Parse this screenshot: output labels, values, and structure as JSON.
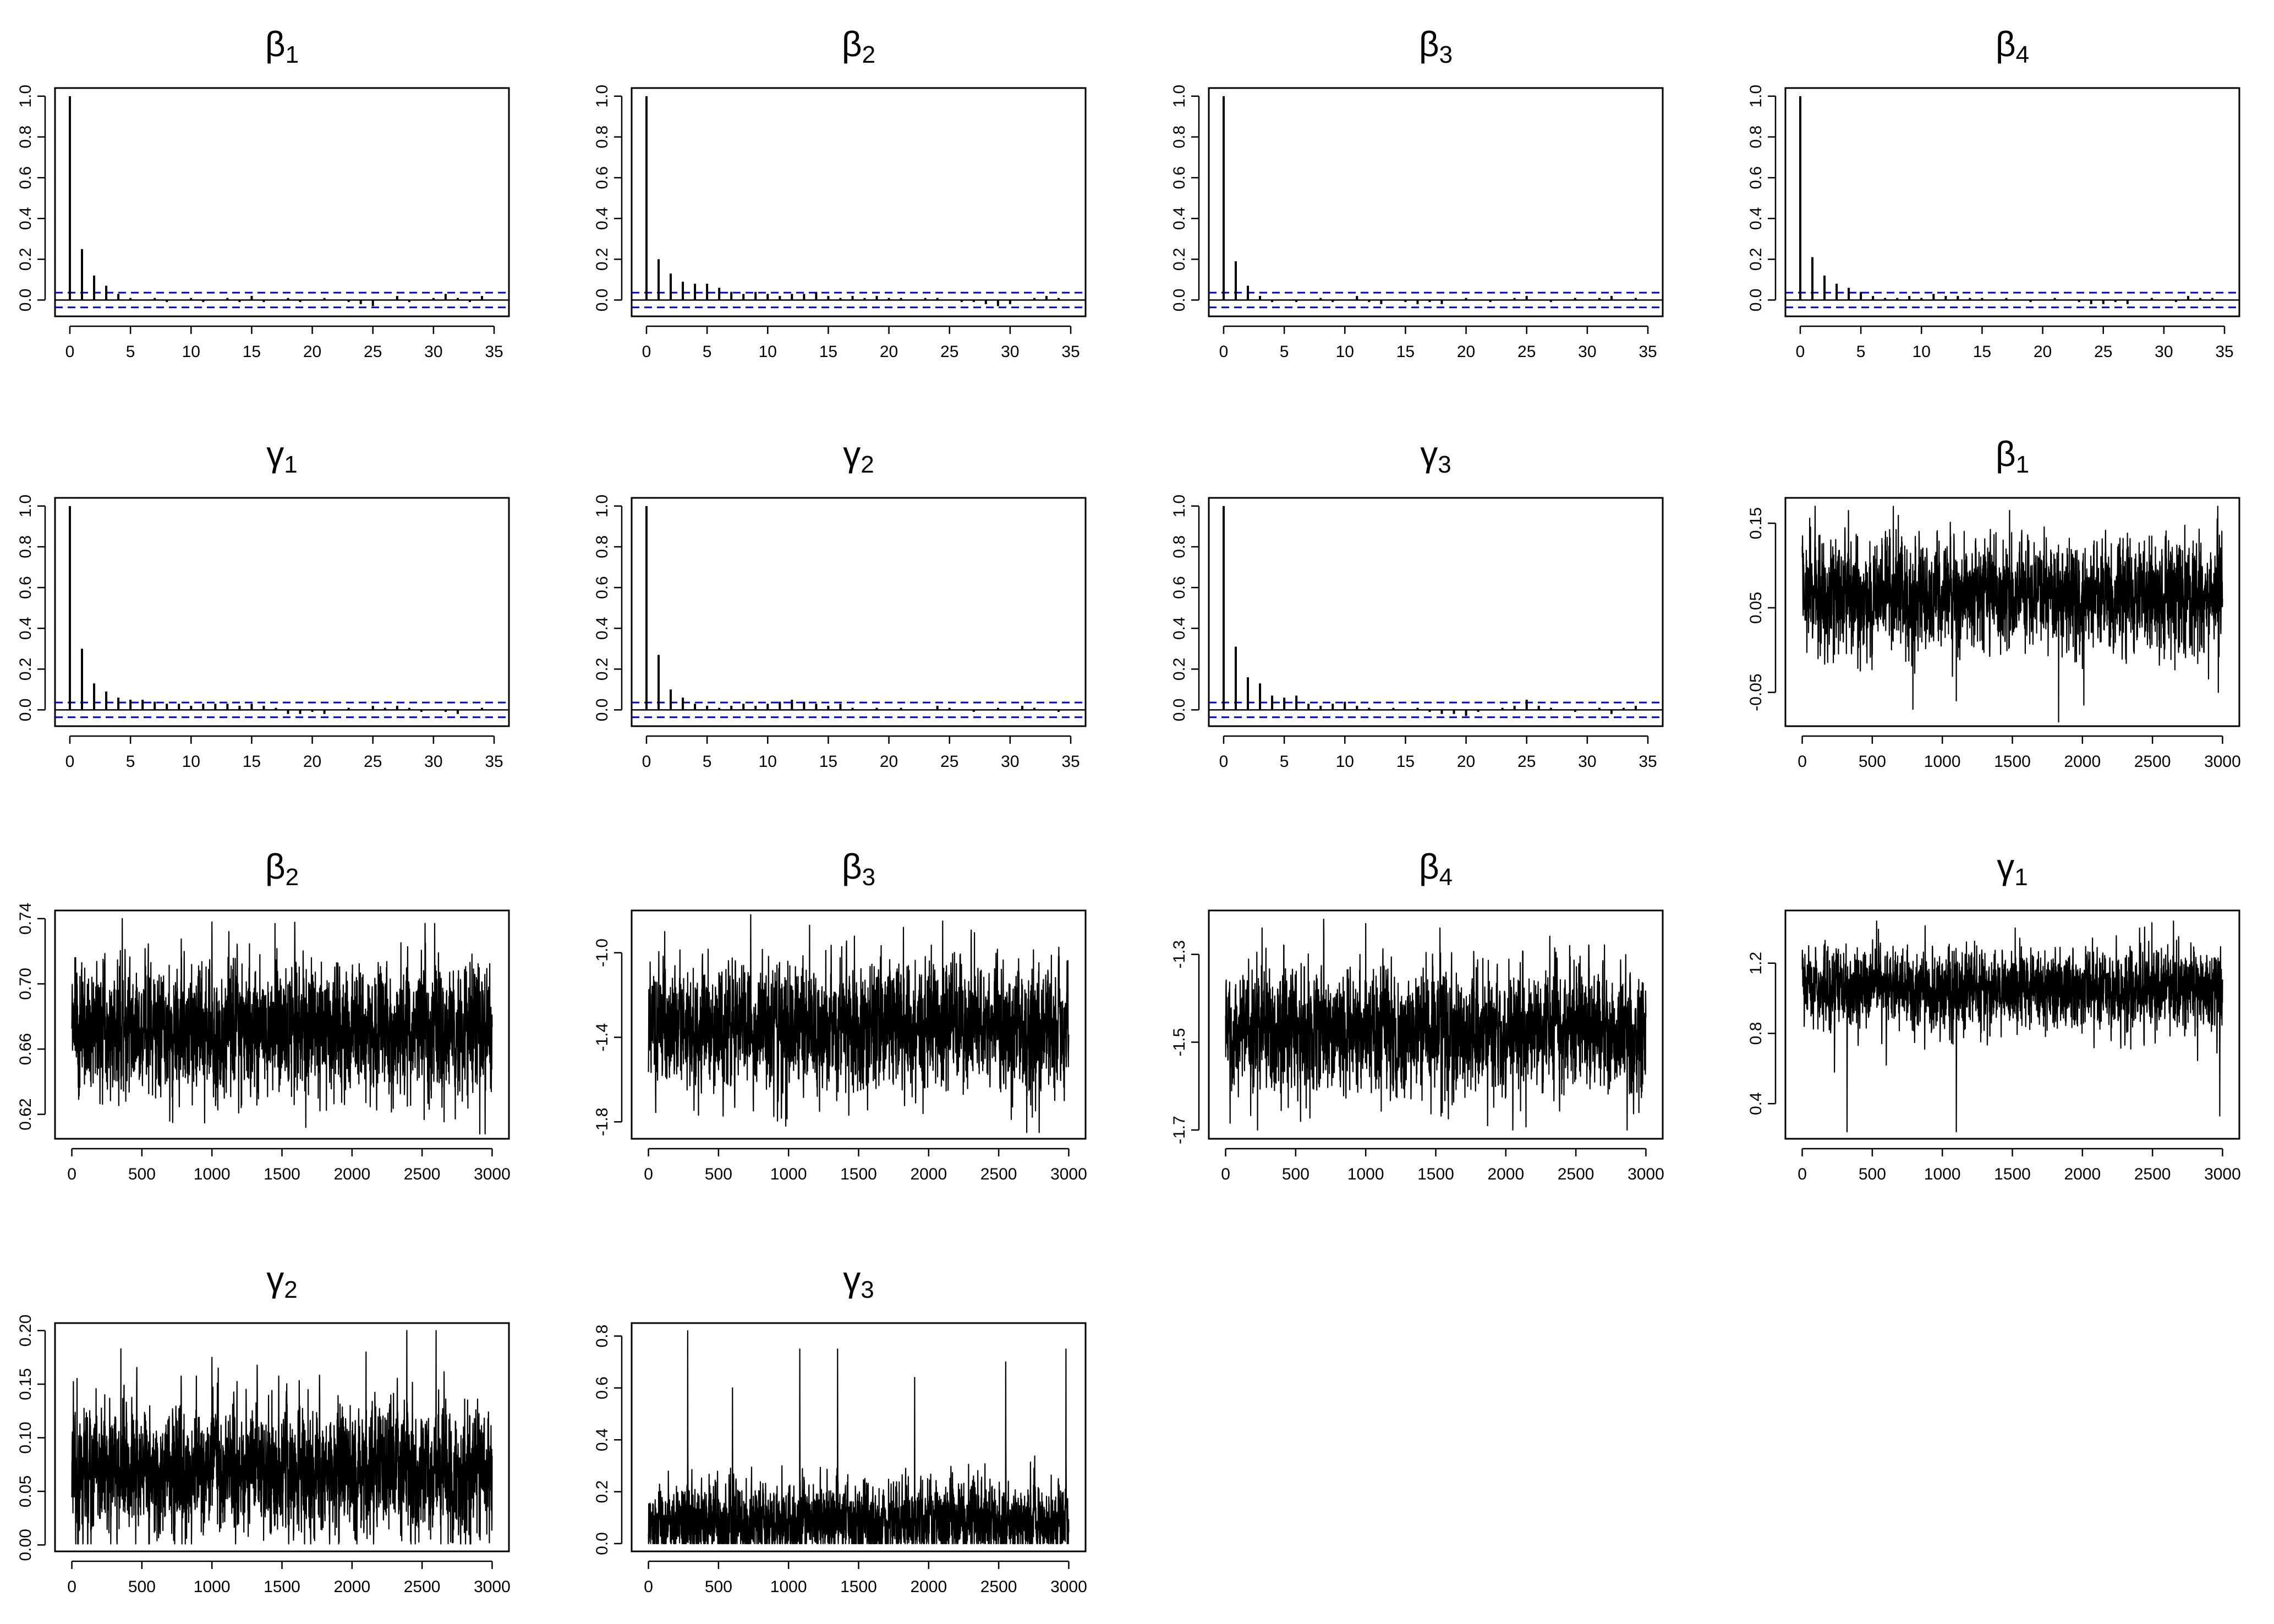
{
  "figure": {
    "layout": "4 rows x 4 columns grid of small panels: 7 autocorrelation (ACF) plots followed by 7 MCMC trace plots"
  },
  "chart_data": [
    {
      "id": "acf-beta1",
      "type": "bar",
      "title": {
        "symbol": "β",
        "sub": "1"
      },
      "xlabel": "",
      "ylabel": "",
      "xlim": [
        0,
        35
      ],
      "ylim": [
        -0.08,
        1.04
      ],
      "xticks": [
        "0",
        "5",
        "10",
        "15",
        "20",
        "25",
        "30",
        "35"
      ],
      "yticks": [
        "0.0",
        "0.2",
        "0.4",
        "0.6",
        "0.8",
        "1.0"
      ],
      "confidence_band": 0.036,
      "lags": [
        0,
        1,
        2,
        3,
        4,
        5,
        6,
        7,
        8,
        9,
        10,
        11,
        12,
        13,
        14,
        15,
        16,
        17,
        18,
        19,
        20,
        21,
        22,
        23,
        24,
        25,
        26,
        27,
        28,
        29,
        30,
        31,
        32,
        33,
        34
      ],
      "values": [
        1.0,
        0.25,
        0.12,
        0.07,
        0.03,
        0.01,
        0.0,
        0.01,
        -0.01,
        0.0,
        0.01,
        -0.01,
        0.0,
        0.01,
        -0.01,
        0.02,
        -0.01,
        0.0,
        0.01,
        -0.01,
        0.0,
        0.01,
        0.0,
        -0.01,
        -0.02,
        -0.03,
        0.0,
        0.02,
        -0.01,
        0.0,
        0.01,
        0.03,
        0.01,
        -0.01,
        0.02
      ],
      "grid": false,
      "legend": "none"
    },
    {
      "id": "acf-beta2",
      "type": "bar",
      "title": {
        "symbol": "β",
        "sub": "2"
      },
      "xlabel": "",
      "ylabel": "",
      "xlim": [
        0,
        35
      ],
      "ylim": [
        -0.08,
        1.04
      ],
      "xticks": [
        "0",
        "5",
        "10",
        "15",
        "20",
        "25",
        "30",
        "35"
      ],
      "yticks": [
        "0.0",
        "0.2",
        "0.4",
        "0.6",
        "0.8",
        "1.0"
      ],
      "confidence_band": 0.036,
      "lags": [
        0,
        1,
        2,
        3,
        4,
        5,
        6,
        7,
        8,
        9,
        10,
        11,
        12,
        13,
        14,
        15,
        16,
        17,
        18,
        19,
        20,
        21,
        22,
        23,
        24,
        25,
        26,
        27,
        28,
        29,
        30,
        31,
        32,
        33,
        34
      ],
      "values": [
        1.0,
        0.2,
        0.13,
        0.09,
        0.08,
        0.08,
        0.06,
        0.04,
        0.03,
        0.04,
        0.03,
        0.02,
        0.03,
        0.03,
        0.04,
        0.02,
        0.01,
        0.02,
        0.01,
        0.02,
        0.01,
        0.01,
        0.0,
        0.01,
        0.01,
        0.0,
        -0.01,
        -0.01,
        -0.02,
        -0.03,
        -0.02,
        0.0,
        0.01,
        0.02,
        0.01
      ],
      "grid": false,
      "legend": "none"
    },
    {
      "id": "acf-beta3",
      "type": "bar",
      "title": {
        "symbol": "β",
        "sub": "3"
      },
      "xlabel": "",
      "ylabel": "",
      "xlim": [
        0,
        35
      ],
      "ylim": [
        -0.08,
        1.04
      ],
      "xticks": [
        "0",
        "5",
        "10",
        "15",
        "20",
        "25",
        "30",
        "35"
      ],
      "yticks": [
        "0.0",
        "0.2",
        "0.4",
        "0.6",
        "0.8",
        "1.0"
      ],
      "confidence_band": 0.036,
      "lags": [
        0,
        1,
        2,
        3,
        4,
        5,
        6,
        7,
        8,
        9,
        10,
        11,
        12,
        13,
        14,
        15,
        16,
        17,
        18,
        19,
        20,
        21,
        22,
        23,
        24,
        25,
        26,
        27,
        28,
        29,
        30,
        31,
        32,
        33,
        34
      ],
      "values": [
        1.0,
        0.19,
        0.07,
        0.02,
        -0.01,
        0.0,
        -0.01,
        0.0,
        0.01,
        -0.01,
        0.0,
        0.02,
        -0.01,
        -0.02,
        0.0,
        -0.01,
        -0.02,
        -0.01,
        -0.02,
        0.0,
        0.01,
        0.0,
        -0.01,
        0.0,
        0.01,
        0.02,
        0.0,
        -0.01,
        0.0,
        0.01,
        0.0,
        0.01,
        0.02,
        0.0,
        0.01
      ],
      "grid": false,
      "legend": "none"
    },
    {
      "id": "acf-beta4",
      "type": "bar",
      "title": {
        "symbol": "β",
        "sub": "4"
      },
      "xlabel": "",
      "ylabel": "",
      "xlim": [
        0,
        35
      ],
      "ylim": [
        -0.08,
        1.04
      ],
      "xticks": [
        "0",
        "5",
        "10",
        "15",
        "20",
        "25",
        "30",
        "35"
      ],
      "yticks": [
        "0.0",
        "0.2",
        "0.4",
        "0.6",
        "0.8",
        "1.0"
      ],
      "confidence_band": 0.036,
      "lags": [
        0,
        1,
        2,
        3,
        4,
        5,
        6,
        7,
        8,
        9,
        10,
        11,
        12,
        13,
        14,
        15,
        16,
        17,
        18,
        19,
        20,
        21,
        22,
        23,
        24,
        25,
        26,
        27,
        28,
        29,
        30,
        31,
        32,
        33,
        34
      ],
      "values": [
        1.0,
        0.21,
        0.12,
        0.08,
        0.06,
        0.04,
        0.02,
        0.01,
        0.01,
        0.02,
        0.01,
        0.03,
        0.02,
        0.02,
        0.01,
        0.01,
        0.0,
        0.01,
        0.0,
        -0.01,
        0.0,
        0.01,
        0.0,
        -0.01,
        -0.02,
        -0.02,
        -0.01,
        -0.02,
        0.0,
        0.01,
        0.0,
        -0.01,
        0.02,
        0.01,
        0.01
      ],
      "grid": false,
      "legend": "none"
    },
    {
      "id": "acf-gamma1",
      "type": "bar",
      "title": {
        "symbol": "γ",
        "sub": "1"
      },
      "xlabel": "",
      "ylabel": "",
      "xlim": [
        0,
        35
      ],
      "ylim": [
        -0.08,
        1.04
      ],
      "xticks": [
        "0",
        "5",
        "10",
        "15",
        "20",
        "25",
        "30",
        "35"
      ],
      "yticks": [
        "0.0",
        "0.2",
        "0.4",
        "0.6",
        "0.8",
        "1.0"
      ],
      "confidence_band": 0.036,
      "lags": [
        0,
        1,
        2,
        3,
        4,
        5,
        6,
        7,
        8,
        9,
        10,
        11,
        12,
        13,
        14,
        15,
        16,
        17,
        18,
        19,
        20,
        21,
        22,
        23,
        24,
        25,
        26,
        27,
        28,
        29,
        30,
        31,
        32,
        33,
        34
      ],
      "values": [
        1.0,
        0.3,
        0.13,
        0.09,
        0.06,
        0.05,
        0.05,
        0.04,
        0.03,
        0.03,
        0.02,
        0.03,
        0.03,
        0.03,
        0.02,
        0.03,
        0.02,
        0.01,
        -0.02,
        -0.02,
        -0.01,
        -0.02,
        0.0,
        0.01,
        0.0,
        0.02,
        0.01,
        0.02,
        0.01,
        -0.01,
        0.0,
        -0.01,
        -0.02,
        0.0,
        0.01
      ],
      "grid": false,
      "legend": "none"
    },
    {
      "id": "acf-gamma2",
      "type": "bar",
      "title": {
        "symbol": "γ",
        "sub": "2"
      },
      "xlabel": "",
      "ylabel": "",
      "xlim": [
        0,
        35
      ],
      "ylim": [
        -0.08,
        1.04
      ],
      "xticks": [
        "0",
        "5",
        "10",
        "15",
        "20",
        "25",
        "30",
        "35"
      ],
      "yticks": [
        "0.0",
        "0.2",
        "0.4",
        "0.6",
        "0.8",
        "1.0"
      ],
      "confidence_band": 0.036,
      "lags": [
        0,
        1,
        2,
        3,
        4,
        5,
        6,
        7,
        8,
        9,
        10,
        11,
        12,
        13,
        14,
        15,
        16,
        17,
        18,
        19,
        20,
        21,
        22,
        23,
        24,
        25,
        26,
        27,
        28,
        29,
        30,
        31,
        32,
        33,
        34
      ],
      "values": [
        1.0,
        0.27,
        0.1,
        0.06,
        0.03,
        0.02,
        0.01,
        0.02,
        0.03,
        0.02,
        0.03,
        0.04,
        0.05,
        0.04,
        0.03,
        0.02,
        0.03,
        0.01,
        0.0,
        0.01,
        0.0,
        0.01,
        0.0,
        0.0,
        0.02,
        0.01,
        0.0,
        -0.01,
        0.0,
        0.01,
        0.0,
        0.02,
        0.01,
        0.0,
        -0.01
      ],
      "grid": false,
      "legend": "none"
    },
    {
      "id": "acf-gamma3",
      "type": "bar",
      "title": {
        "symbol": "γ",
        "sub": "3"
      },
      "xlabel": "",
      "ylabel": "",
      "xlim": [
        0,
        35
      ],
      "ylim": [
        -0.08,
        1.04
      ],
      "xticks": [
        "0",
        "5",
        "10",
        "15",
        "20",
        "25",
        "30",
        "35"
      ],
      "yticks": [
        "0.0",
        "0.2",
        "0.4",
        "0.6",
        "0.8",
        "1.0"
      ],
      "confidence_band": 0.036,
      "lags": [
        0,
        1,
        2,
        3,
        4,
        5,
        6,
        7,
        8,
        9,
        10,
        11,
        12,
        13,
        14,
        15,
        16,
        17,
        18,
        19,
        20,
        21,
        22,
        23,
        24,
        25,
        26,
        27,
        28,
        29,
        30,
        31,
        32,
        33,
        34
      ],
      "values": [
        1.0,
        0.31,
        0.16,
        0.13,
        0.07,
        0.06,
        0.07,
        0.03,
        0.02,
        0.03,
        0.04,
        0.02,
        0.01,
        0.0,
        0.01,
        0.0,
        0.01,
        -0.01,
        -0.02,
        -0.02,
        -0.03,
        -0.01,
        0.0,
        0.01,
        0.02,
        0.05,
        0.02,
        0.01,
        0.0,
        -0.01,
        0.0,
        0.01,
        -0.02,
        0.01,
        0.02
      ],
      "grid": false,
      "legend": "none"
    },
    {
      "id": "trace-beta1",
      "type": "line",
      "title": {
        "symbol": "β",
        "sub": "1"
      },
      "xlabel": "",
      "ylabel": "",
      "xlim": [
        0,
        3000
      ],
      "ylim": [
        -0.09,
        0.18
      ],
      "xticks": [
        "0",
        "500",
        "1000",
        "1500",
        "2000",
        "2500",
        "3000"
      ],
      "yticks": [
        "-0.05",
        "0.05",
        "0.15"
      ],
      "ytick_values": [
        -0.05,
        0.05,
        0.15
      ],
      "trace": {
        "iterations": 3000,
        "center": 0.065,
        "spread": 0.028,
        "min": -0.085,
        "max": 0.17,
        "spikes": [
          [
            330,
            0.165
          ],
          [
            1480,
            0.165
          ],
          [
            650,
            0.17
          ],
          [
            1830,
            -0.085
          ],
          [
            1100,
            -0.06
          ],
          [
            2010,
            -0.065
          ],
          [
            2970,
            -0.05
          ],
          [
            790,
            -0.07
          ]
        ]
      },
      "grid": false,
      "legend": "none"
    },
    {
      "id": "trace-beta2",
      "type": "line",
      "title": {
        "symbol": "β",
        "sub": "2"
      },
      "xlabel": "",
      "ylabel": "",
      "xlim": [
        0,
        3000
      ],
      "ylim": [
        0.605,
        0.745
      ],
      "xticks": [
        "0",
        "500",
        "1000",
        "1500",
        "2000",
        "2500",
        "3000"
      ],
      "yticks": [
        "0.62",
        "0.66",
        "0.70",
        "0.74"
      ],
      "ytick_values": [
        0.62,
        0.66,
        0.7,
        0.74
      ],
      "trace": {
        "iterations": 3000,
        "center": 0.672,
        "spread": 0.018,
        "min": 0.608,
        "max": 0.74,
        "spikes": [
          [
            360,
            0.74
          ],
          [
            1000,
            0.738
          ],
          [
            1450,
            0.737
          ],
          [
            2590,
            0.737
          ],
          [
            1670,
            0.612
          ],
          [
            2950,
            0.608
          ],
          [
            720,
            0.615
          ]
        ]
      },
      "grid": false,
      "legend": "none"
    },
    {
      "id": "trace-beta3",
      "type": "line",
      "title": {
        "symbol": "β",
        "sub": "3"
      },
      "xlabel": "",
      "ylabel": "",
      "xlim": [
        0,
        3000
      ],
      "ylim": [
        -1.88,
        -0.8
      ],
      "xticks": [
        "0",
        "500",
        "1000",
        "1500",
        "2000",
        "2500",
        "3000"
      ],
      "yticks": [
        "-1.8",
        "-1.4",
        "-1.0"
      ],
      "ytick_values": [
        -1.8,
        -1.4,
        -1.0
      ],
      "trace": {
        "iterations": 3000,
        "center": -1.35,
        "spread": 0.13,
        "min": -1.85,
        "max": -0.82,
        "spikes": [
          [
            730,
            -0.82
          ],
          [
            1150,
            -0.87
          ],
          [
            2100,
            -0.85
          ],
          [
            2700,
            -1.85
          ],
          [
            980,
            -1.82
          ],
          [
            1960,
            -1.76
          ],
          [
            1820,
            -0.88
          ]
        ]
      },
      "grid": false,
      "legend": "none"
    },
    {
      "id": "trace-beta4",
      "type": "line",
      "title": {
        "symbol": "β",
        "sub": "4"
      },
      "xlabel": "",
      "ylabel": "",
      "xlim": [
        0,
        3000
      ],
      "ylim": [
        -1.72,
        -1.2
      ],
      "xticks": [
        "0",
        "500",
        "1000",
        "1500",
        "2000",
        "2500",
        "3000"
      ],
      "yticks": [
        "-1.7",
        "-1.5",
        "-1.3"
      ],
      "ytick_values": [
        -1.7,
        -1.5,
        -1.3
      ],
      "trace": {
        "iterations": 3000,
        "center": -1.475,
        "spread": 0.06,
        "min": -1.7,
        "max": -1.22,
        "spikes": [
          [
            260,
            -1.24
          ],
          [
            700,
            -1.22
          ],
          [
            1000,
            -1.23
          ],
          [
            1530,
            -1.24
          ],
          [
            2050,
            -1.7
          ],
          [
            1870,
            -1.69
          ],
          [
            2950,
            -1.66
          ]
        ]
      },
      "grid": false,
      "legend": "none"
    },
    {
      "id": "trace-gamma1",
      "type": "line",
      "title": {
        "symbol": "γ",
        "sub": "1"
      },
      "xlabel": "",
      "ylabel": "",
      "xlim": [
        0,
        3000
      ],
      "ylim": [
        0.2,
        1.5
      ],
      "xticks": [
        "0",
        "500",
        "1000",
        "1500",
        "2000",
        "2500",
        "3000"
      ],
      "yticks": [
        "0.4",
        "0.8",
        "1.2"
      ],
      "ytick_values": [
        0.4,
        0.8,
        1.2
      ],
      "trace": {
        "iterations": 3000,
        "center": 1.05,
        "spread": 0.1,
        "min": 0.24,
        "max": 1.44,
        "spikes": [
          [
            320,
            0.24
          ],
          [
            1100,
            0.24
          ],
          [
            2980,
            0.33
          ],
          [
            230,
            0.58
          ],
          [
            2650,
            1.44
          ],
          [
            1520,
            1.4
          ],
          [
            600,
            0.62
          ]
        ]
      },
      "grid": false,
      "legend": "none"
    },
    {
      "id": "trace-gamma2",
      "type": "line",
      "title": {
        "symbol": "γ",
        "sub": "2"
      },
      "xlabel": "",
      "ylabel": "",
      "xlim": [
        0,
        3000
      ],
      "ylim": [
        -0.006,
        0.207
      ],
      "xticks": [
        "0",
        "500",
        "1000",
        "1500",
        "2000",
        "2500",
        "3000"
      ],
      "yticks": [
        "0.00",
        "0.05",
        "0.10",
        "0.15",
        "0.20"
      ],
      "ytick_values": [
        0.0,
        0.05,
        0.1,
        0.15,
        0.2
      ],
      "trace": {
        "iterations": 3000,
        "center": 0.07,
        "spread": 0.028,
        "min": 0.001,
        "max": 0.2,
        "spikes": [
          [
            2600,
            0.2
          ],
          [
            350,
            0.183
          ],
          [
            2100,
            0.18
          ],
          [
            1000,
            0.175
          ],
          [
            2980,
            0.002
          ]
        ]
      },
      "grid": false,
      "legend": "none"
    },
    {
      "id": "trace-gamma3",
      "type": "line",
      "title": {
        "symbol": "γ",
        "sub": "3"
      },
      "xlabel": "",
      "ylabel": "",
      "xlim": [
        0,
        3000
      ],
      "ylim": [
        -0.03,
        0.85
      ],
      "xticks": [
        "0",
        "500",
        "1000",
        "1500",
        "2000",
        "2500",
        "3000"
      ],
      "yticks": [
        "0.0",
        "0.2",
        "0.4",
        "0.6",
        "0.8"
      ],
      "ytick_values": [
        0.0,
        0.2,
        0.4,
        0.6,
        0.8
      ],
      "trace": {
        "iterations": 3000,
        "center": 0.08,
        "spread": 0.07,
        "min": 0.0,
        "max": 0.82,
        "spikes": [
          [
            280,
            0.82
          ],
          [
            1080,
            0.75
          ],
          [
            1350,
            0.75
          ],
          [
            2980,
            0.75
          ],
          [
            2550,
            0.7
          ],
          [
            1900,
            0.64
          ],
          [
            600,
            0.6
          ]
        ]
      },
      "grid": false,
      "legend": "none"
    }
  ]
}
